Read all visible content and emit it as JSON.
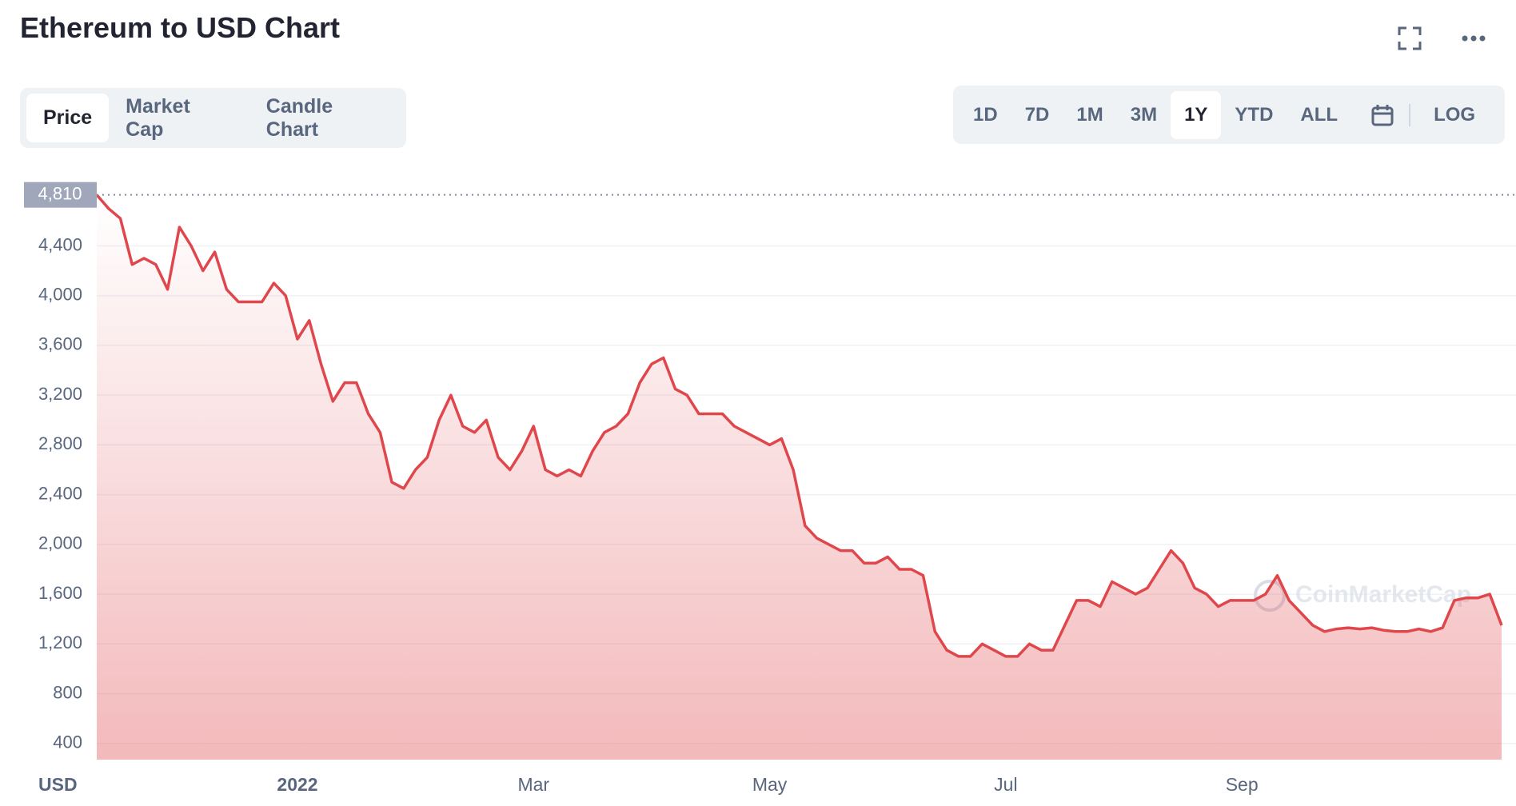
{
  "header": {
    "title": "Ethereum to USD Chart"
  },
  "tabs": [
    "Price",
    "Market Cap",
    "Candle Chart"
  ],
  "active_tab": 0,
  "ranges": [
    "1D",
    "7D",
    "1M",
    "3M",
    "1Y",
    "YTD",
    "ALL"
  ],
  "active_range": 4,
  "log_button": "LOG",
  "chart_data": {
    "type": "area",
    "y_axis_label": "USD",
    "watermark": "CoinMarketCap",
    "color": "#e0474c",
    "grid": true,
    "reference_line": {
      "value": 4810,
      "label": "4,810"
    },
    "ylim": [
      270,
      5020
    ],
    "yticks": [
      400,
      800,
      {
        "value": 1200,
        "label": "1,200"
      },
      {
        "value": 1600,
        "label": "1,600"
      },
      {
        "value": 2000,
        "label": "2,000"
      },
      {
        "value": 2400,
        "label": "2,400"
      },
      {
        "value": 2800,
        "label": "2,800"
      },
      {
        "value": 3200,
        "label": "3,200"
      },
      {
        "value": 3600,
        "label": "3,600"
      },
      {
        "value": 4000,
        "label": "4,000"
      },
      {
        "value": 4400,
        "label": "4,400"
      }
    ],
    "categories": [
      null,
      null,
      null,
      null,
      null,
      null,
      null,
      null,
      null,
      null,
      null,
      null,
      null,
      null,
      null,
      null,
      null,
      "2022",
      null,
      null,
      null,
      null,
      null,
      null,
      null,
      null,
      null,
      null,
      null,
      null,
      null,
      null,
      null,
      null,
      null,
      null,
      null,
      "Mar",
      null,
      null,
      null,
      null,
      null,
      null,
      null,
      null,
      null,
      null,
      null,
      null,
      null,
      null,
      null,
      null,
      null,
      null,
      null,
      "May",
      null,
      null,
      null,
      null,
      null,
      null,
      null,
      null,
      null,
      null,
      null,
      null,
      null,
      null,
      null,
      null,
      null,
      null,
      null,
      "Jul",
      null,
      null,
      null,
      null,
      null,
      null,
      null,
      null,
      null,
      null,
      null,
      null,
      null,
      null,
      null,
      null,
      null,
      null,
      null,
      "Sep",
      null,
      null,
      null,
      null,
      null,
      null,
      null,
      null,
      null,
      null,
      null,
      null,
      null,
      null,
      null,
      null,
      null,
      null,
      null,
      null,
      null,
      null
    ],
    "values": [
      4810,
      4700,
      4620,
      4250,
      4300,
      4250,
      4050,
      4550,
      4400,
      4200,
      4350,
      4050,
      3950,
      3950,
      3950,
      4100,
      4000,
      3650,
      3800,
      3450,
      3150,
      3300,
      3300,
      3050,
      2900,
      2500,
      2450,
      2600,
      2700,
      3000,
      3200,
      2950,
      2900,
      3000,
      2700,
      2600,
      2750,
      2950,
      2600,
      2550,
      2600,
      2550,
      2750,
      2900,
      2950,
      3050,
      3300,
      3450,
      3500,
      3250,
      3200,
      3050,
      3050,
      3050,
      2950,
      2900,
      2850,
      2800,
      2850,
      2600,
      2150,
      2050,
      2000,
      1950,
      1950,
      1850,
      1850,
      1900,
      1800,
      1800,
      1750,
      1300,
      1150,
      1100,
      1100,
      1200,
      1150,
      1100,
      1100,
      1200,
      1150,
      1150,
      1350,
      1550,
      1550,
      1500,
      1700,
      1650,
      1600,
      1650,
      1800,
      1950,
      1850,
      1650,
      1600,
      1500,
      1550,
      1550,
      1550,
      1600,
      1750,
      1550,
      1450,
      1350,
      1300,
      1320,
      1330,
      1320,
      1330,
      1310,
      1300,
      1300,
      1320,
      1300,
      1330,
      1550,
      1570,
      1570,
      1600,
      1350
    ]
  }
}
